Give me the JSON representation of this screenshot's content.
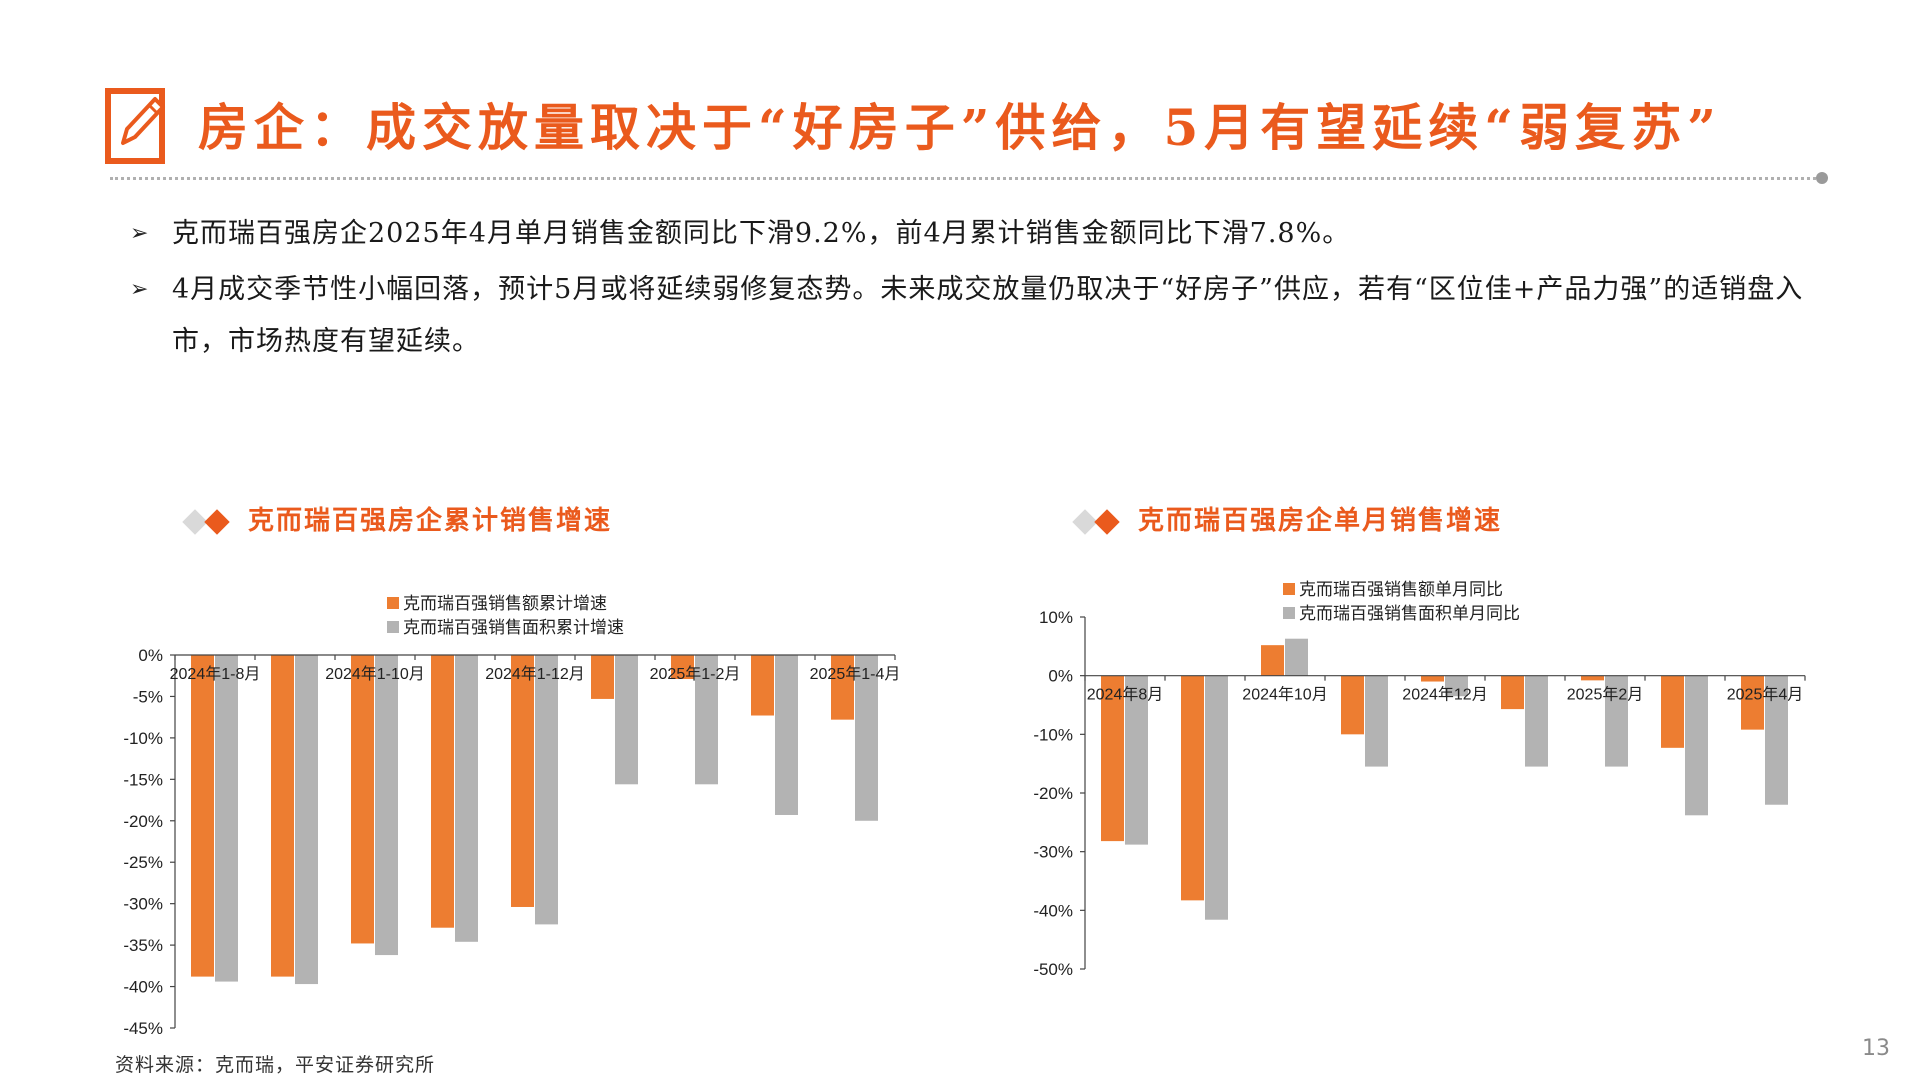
{
  "title": "房企：成交放量取决于“好房子”供给，5月有望延续“弱复苏”",
  "bullets": [
    "克而瑞百强房企2025年4月单月销售金额同比下滑9.2%，前4月累计销售金额同比下滑7.8%。",
    "4月成交季节性小幅回落，预计5月或将延续弱修复态势。未来成交放量仍取决于“好房子”供应，若有“区位佳+产品力强”的适销盘入市，市场热度有望延续。"
  ],
  "source": "资料来源：克而瑞，平安证券研究所",
  "page_number": "13",
  "colors": {
    "accent": "#ea5a1d",
    "bar_orange": "#ed7d31",
    "bar_gray": "#b3b3b3",
    "text": "#1a1a1a"
  },
  "icons": {
    "title": "pencil-edit-icon",
    "bullet": "arrow-bullet-icon",
    "header": "diamond-icon"
  },
  "chart_data": [
    {
      "type": "bar",
      "title": "克而瑞百强房企累计销售增速",
      "categories": [
        "2024年1-8月",
        "2024年1-9月",
        "2024年1-10月",
        "2024年1-11月",
        "2024年1-12月",
        "2025年1月",
        "2025年1-2月",
        "2025年1-3月",
        "2025年1-4月"
      ],
      "tick_labels": [
        "2024年1-8月",
        "",
        "2024年1-10月",
        "",
        "2024年1-12月",
        "",
        "2025年1-2月",
        "",
        "2025年1-4月"
      ],
      "series": [
        {
          "name": "克而瑞百强销售额累计增速",
          "color": "#ed7d31",
          "values": [
            -38.8,
            -38.8,
            -34.8,
            -32.9,
            -30.4,
            -5.3,
            -2.9,
            -7.3,
            -7.8
          ]
        },
        {
          "name": "克而瑞百强销售面积累计增速",
          "color": "#b3b3b3",
          "values": [
            -39.4,
            -39.7,
            -36.2,
            -34.6,
            -32.5,
            -15.6,
            -15.6,
            -19.3,
            -20.0
          ]
        }
      ],
      "ylim": [
        -45,
        0
      ],
      "yticks": [
        0,
        -5,
        -10,
        -15,
        -20,
        -25,
        -30,
        -35,
        -40,
        -45
      ],
      "ytick_labels": [
        "0%",
        "-5%",
        "-10%",
        "-15%",
        "-20%",
        "-25%",
        "-30%",
        "-35%",
        "-40%",
        "-45%"
      ],
      "legend": "top-center",
      "grid": false
    },
    {
      "type": "bar",
      "title": "克而瑞百强房企单月销售增速",
      "categories": [
        "2024年8月",
        "2024年9月",
        "2024年10月",
        "2024年11月",
        "2024年12月",
        "2025年1月",
        "2025年2月",
        "2025年3月",
        "2025年4月"
      ],
      "tick_labels": [
        "2024年8月",
        "",
        "2024年10月",
        "",
        "2024年12月",
        "",
        "2025年2月",
        "",
        "2025年4月"
      ],
      "series": [
        {
          "name": "克而瑞百强销售额单月同比",
          "color": "#ed7d31",
          "values": [
            -28.2,
            -38.3,
            5.2,
            -10.0,
            -1.0,
            -5.7,
            -0.8,
            -12.3,
            -9.2
          ]
        },
        {
          "name": "克而瑞百强销售面积单月同比",
          "color": "#b3b3b3",
          "values": [
            -28.8,
            -41.6,
            6.3,
            -15.5,
            -3.5,
            -15.5,
            -15.5,
            -23.8,
            -22.0
          ]
        }
      ],
      "ylim": [
        -50,
        10
      ],
      "yticks": [
        10,
        0,
        -10,
        -20,
        -30,
        -40,
        -50
      ],
      "ytick_labels": [
        "10%",
        "0%",
        "-10%",
        "-20%",
        "-30%",
        "-40%",
        "-50%"
      ],
      "legend": "top-center",
      "grid": false
    }
  ]
}
